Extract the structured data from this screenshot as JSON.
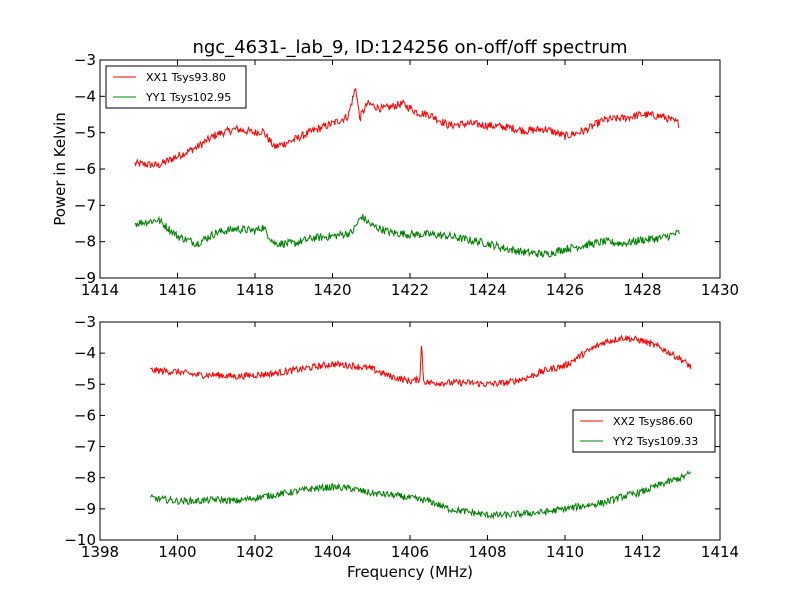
{
  "chart_data": [
    {
      "type": "line",
      "title": "ngc_4631-_lab_9, ID:124256 on-off/off spectrum",
      "xlabel": "",
      "ylabel": "Power in Kelvin",
      "xlim": [
        1414,
        1430
      ],
      "ylim": [
        -9,
        -3
      ],
      "xticks": [
        "1414",
        "1416",
        "1418",
        "1420",
        "1422",
        "1424",
        "1426",
        "1428",
        "1430"
      ],
      "yticks": [
        "−9",
        "−8",
        "−7",
        "−6",
        "−5",
        "−4",
        "−3"
      ],
      "legend": "top-left",
      "series": [
        {
          "name": "XX1 Tsys93.80",
          "color": "#ff0000",
          "points": [
            [
              1414.9,
              -5.85
            ],
            [
              1415.5,
              -5.9
            ],
            [
              1416.0,
              -5.65
            ],
            [
              1416.5,
              -5.4
            ],
            [
              1417.0,
              -5.05
            ],
            [
              1417.5,
              -4.9
            ],
            [
              1418.0,
              -5.0
            ],
            [
              1418.2,
              -4.95
            ],
            [
              1418.5,
              -5.4
            ],
            [
              1419.0,
              -5.2
            ],
            [
              1419.5,
              -4.95
            ],
            [
              1420.0,
              -4.75
            ],
            [
              1420.4,
              -4.55
            ],
            [
              1420.6,
              -3.75
            ],
            [
              1420.7,
              -4.6
            ],
            [
              1420.9,
              -4.2
            ],
            [
              1421.3,
              -4.35
            ],
            [
              1421.8,
              -4.2
            ],
            [
              1422.2,
              -4.45
            ],
            [
              1422.5,
              -4.5
            ],
            [
              1423.0,
              -4.8
            ],
            [
              1423.5,
              -4.75
            ],
            [
              1424.0,
              -4.8
            ],
            [
              1424.5,
              -4.85
            ],
            [
              1425.0,
              -4.95
            ],
            [
              1425.5,
              -4.9
            ],
            [
              1426.0,
              -5.1
            ],
            [
              1426.5,
              -4.95
            ],
            [
              1427.0,
              -4.65
            ],
            [
              1427.5,
              -4.6
            ],
            [
              1428.0,
              -4.5
            ],
            [
              1428.5,
              -4.55
            ],
            [
              1428.95,
              -4.75
            ]
          ]
        },
        {
          "name": "YY1 Tsys102.95",
          "color": "#008000",
          "points": [
            [
              1414.9,
              -7.5
            ],
            [
              1415.5,
              -7.4
            ],
            [
              1416.0,
              -7.85
            ],
            [
              1416.5,
              -8.05
            ],
            [
              1417.0,
              -7.75
            ],
            [
              1417.5,
              -7.65
            ],
            [
              1418.0,
              -7.7
            ],
            [
              1418.2,
              -7.6
            ],
            [
              1418.5,
              -8.05
            ],
            [
              1419.0,
              -8.05
            ],
            [
              1419.5,
              -7.9
            ],
            [
              1420.0,
              -7.85
            ],
            [
              1420.5,
              -7.75
            ],
            [
              1420.75,
              -7.3
            ],
            [
              1421.0,
              -7.55
            ],
            [
              1421.5,
              -7.75
            ],
            [
              1422.0,
              -7.8
            ],
            [
              1422.5,
              -7.8
            ],
            [
              1423.0,
              -7.85
            ],
            [
              1423.5,
              -7.95
            ],
            [
              1424.0,
              -8.05
            ],
            [
              1424.5,
              -8.2
            ],
            [
              1425.0,
              -8.3
            ],
            [
              1425.5,
              -8.35
            ],
            [
              1426.0,
              -8.2
            ],
            [
              1426.5,
              -8.1
            ],
            [
              1427.0,
              -8.0
            ],
            [
              1427.5,
              -8.05
            ],
            [
              1428.0,
              -7.95
            ],
            [
              1428.5,
              -7.9
            ],
            [
              1428.95,
              -7.75
            ]
          ]
        }
      ]
    },
    {
      "type": "line",
      "title": "",
      "xlabel": "Frequency (MHz)",
      "ylabel": "",
      "xlim": [
        1398,
        1414
      ],
      "ylim": [
        -10,
        -3
      ],
      "xticks": [
        "1398",
        "1400",
        "1402",
        "1404",
        "1406",
        "1408",
        "1410",
        "1412",
        "1414"
      ],
      "yticks": [
        "−10",
        "−9",
        "−8",
        "−7",
        "−6",
        "−5",
        "−4",
        "−3"
      ],
      "legend": "center-right",
      "series": [
        {
          "name": "XX2 Tsys86.60",
          "color": "#ff0000",
          "points": [
            [
              1399.3,
              -4.55
            ],
            [
              1400.0,
              -4.6
            ],
            [
              1400.5,
              -4.7
            ],
            [
              1401.0,
              -4.7
            ],
            [
              1401.5,
              -4.75
            ],
            [
              1402.0,
              -4.7
            ],
            [
              1402.5,
              -4.65
            ],
            [
              1403.0,
              -4.55
            ],
            [
              1403.5,
              -4.45
            ],
            [
              1404.0,
              -4.35
            ],
            [
              1404.5,
              -4.4
            ],
            [
              1405.0,
              -4.5
            ],
            [
              1405.5,
              -4.75
            ],
            [
              1406.0,
              -4.9
            ],
            [
              1406.25,
              -4.85
            ],
            [
              1406.3,
              -3.7
            ],
            [
              1406.35,
              -4.9
            ],
            [
              1406.5,
              -4.95
            ],
            [
              1407.0,
              -4.95
            ],
            [
              1407.5,
              -4.95
            ],
            [
              1408.0,
              -5.0
            ],
            [
              1408.5,
              -4.95
            ],
            [
              1409.0,
              -4.8
            ],
            [
              1409.5,
              -4.55
            ],
            [
              1410.0,
              -4.4
            ],
            [
              1410.5,
              -4.0
            ],
            [
              1411.0,
              -3.65
            ],
            [
              1411.5,
              -3.5
            ],
            [
              1412.0,
              -3.6
            ],
            [
              1412.5,
              -3.85
            ],
            [
              1413.0,
              -4.2
            ],
            [
              1413.25,
              -4.45
            ]
          ]
        },
        {
          "name": "YY2 Tsys109.33",
          "color": "#008000",
          "points": [
            [
              1399.3,
              -8.65
            ],
            [
              1400.0,
              -8.75
            ],
            [
              1400.5,
              -8.75
            ],
            [
              1401.0,
              -8.7
            ],
            [
              1401.5,
              -8.75
            ],
            [
              1402.0,
              -8.65
            ],
            [
              1402.5,
              -8.55
            ],
            [
              1403.0,
              -8.45
            ],
            [
              1403.5,
              -8.35
            ],
            [
              1404.0,
              -8.3
            ],
            [
              1404.5,
              -8.35
            ],
            [
              1405.0,
              -8.5
            ],
            [
              1405.5,
              -8.55
            ],
            [
              1406.0,
              -8.65
            ],
            [
              1406.5,
              -8.75
            ],
            [
              1407.0,
              -9.0
            ],
            [
              1407.5,
              -9.1
            ],
            [
              1408.0,
              -9.2
            ],
            [
              1408.5,
              -9.2
            ],
            [
              1409.0,
              -9.15
            ],
            [
              1409.5,
              -9.1
            ],
            [
              1410.0,
              -9.0
            ],
            [
              1410.5,
              -8.9
            ],
            [
              1411.0,
              -8.8
            ],
            [
              1411.5,
              -8.6
            ],
            [
              1412.0,
              -8.45
            ],
            [
              1412.5,
              -8.2
            ],
            [
              1413.0,
              -8.0
            ],
            [
              1413.25,
              -7.85
            ]
          ]
        }
      ]
    }
  ]
}
